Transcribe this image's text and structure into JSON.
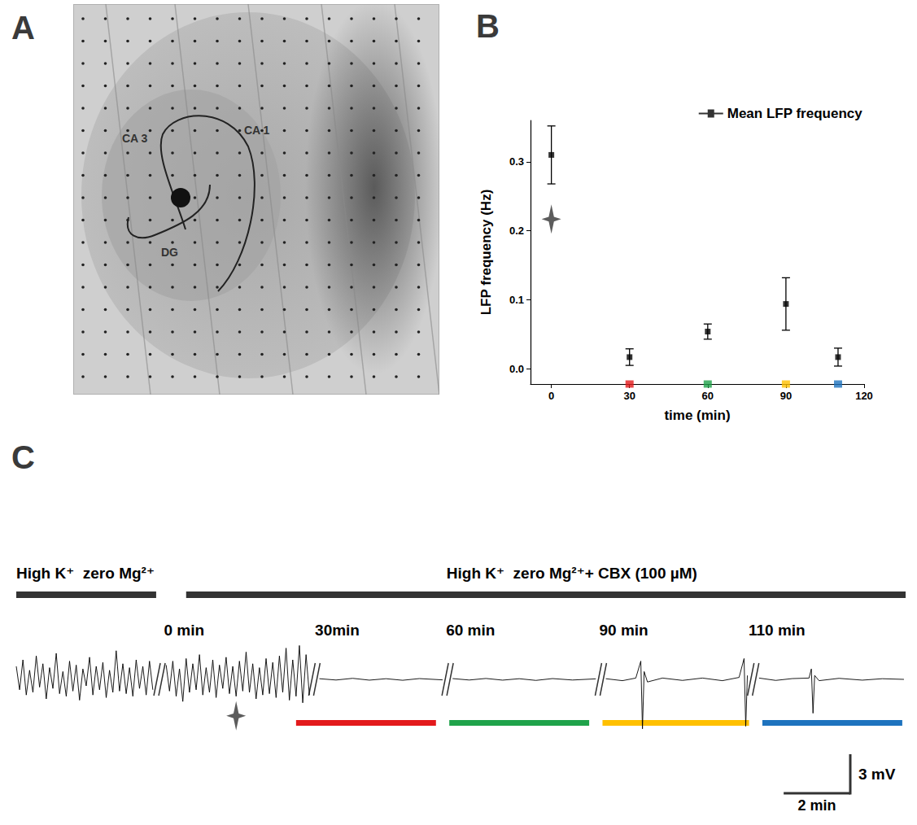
{
  "image": {
    "letter": "A",
    "labels": [
      "CA 3",
      "CA 1",
      "DG"
    ]
  },
  "chart_data": [
    {
      "letter": "B",
      "type": "scatter",
      "x": [
        0,
        30,
        60,
        90,
        110
      ],
      "series": [
        {
          "name": "Mean LFP frequency",
          "color": "#000000",
          "marker": "square",
          "values": [
            0.31,
            0.017,
            0.054,
            0.094,
            0.017
          ],
          "errors": [
            0.042,
            0.012,
            0.011,
            0.038,
            0.013
          ]
        }
      ],
      "x_axis_label": "time (min)",
      "y_axis_label": "LFP frequency (Hz)",
      "xlim": [
        -8,
        120
      ],
      "xticks": [
        0,
        30,
        60,
        90,
        120
      ],
      "ylim": [
        -0.022,
        0.36
      ],
      "yticks": [
        {
          "value": 0,
          "label": "0.0"
        },
        {
          "value": 0.1,
          "label": "0.1"
        },
        {
          "value": 0.2,
          "label": "0.2"
        },
        {
          "value": 0.3,
          "label": "0.3"
        }
      ],
      "grid": false,
      "legend": "top-right",
      "star": {
        "x": 0,
        "y": 0.217
      },
      "x_markers": {
        "x": [
          30,
          60,
          90,
          110
        ],
        "colors": [
          "#e31a1c",
          "#1fa34a",
          "#ffc000",
          "#1e73be"
        ]
      }
    },
    {
      "letter": "C",
      "type": "line",
      "color": "#000000",
      "tick_labels": false,
      "xlim": [
        0,
        26.7
      ],
      "ylim": [
        -5,
        3
      ],
      "segments": [
        {
          "points": [
            [
              0,
              1.0
            ],
            [
              0.1,
              -0.8
            ],
            [
              0.2,
              1.5
            ],
            [
              0.3,
              -1.2
            ],
            [
              0.4,
              0.7
            ],
            [
              0.5,
              -1.0
            ],
            [
              0.6,
              1.8
            ],
            [
              0.7,
              -0.6
            ],
            [
              0.8,
              1.2
            ],
            [
              0.9,
              -1.5
            ],
            [
              1.0,
              0.9
            ],
            [
              1.1,
              -0.7
            ],
            [
              1.2,
              2.0
            ],
            [
              1.3,
              -1.1
            ],
            [
              1.4,
              0.6
            ],
            [
              1.5,
              -1.3
            ],
            [
              1.6,
              1.4
            ],
            [
              1.7,
              -0.9
            ],
            [
              1.8,
              1.1
            ],
            [
              1.9,
              -1.6
            ],
            [
              2.0,
              0.8
            ],
            [
              2.1,
              -0.5
            ],
            [
              2.2,
              1.7
            ],
            [
              2.3,
              -1.2
            ],
            [
              2.4,
              1.0
            ],
            [
              2.5,
              -0.8
            ],
            [
              2.6,
              1.3
            ],
            [
              2.7,
              -1.4
            ],
            [
              2.8,
              0.7
            ],
            [
              2.9,
              -1.0
            ],
            [
              3.0,
              2.2
            ],
            [
              3.1,
              -0.9
            ],
            [
              3.2,
              1.2
            ],
            [
              3.3,
              -1.1
            ],
            [
              3.4,
              0.9
            ],
            [
              3.5,
              -1.3
            ],
            [
              3.6,
              1.5
            ],
            [
              3.7,
              -0.7
            ],
            [
              3.8,
              1.0
            ],
            [
              3.9,
              -1.2
            ],
            [
              4.0,
              1.4
            ],
            [
              4.1,
              -0.8
            ]
          ]
        },
        {
          "label": "0 min",
          "points": [
            [
              4.5,
              1.1
            ],
            [
              4.6,
              -0.9
            ],
            [
              4.7,
              1.4
            ],
            [
              4.8,
              -1.3
            ],
            [
              4.9,
              0.8
            ],
            [
              5.0,
              -1.7
            ],
            [
              5.1,
              1.6
            ],
            [
              5.2,
              -1.0
            ],
            [
              5.3,
              1.2
            ],
            [
              5.4,
              -0.8
            ],
            [
              5.5,
              1.9
            ],
            [
              5.6,
              -1.2
            ],
            [
              5.7,
              0.9
            ],
            [
              5.8,
              -1.0
            ],
            [
              5.9,
              1.5
            ],
            [
              6.0,
              -1.4
            ],
            [
              6.1,
              1.1
            ],
            [
              6.2,
              -0.7
            ],
            [
              6.3,
              1.7
            ],
            [
              6.4,
              -1.1
            ],
            [
              6.5,
              1.0
            ],
            [
              6.6,
              -1.3
            ],
            [
              6.7,
              1.4
            ],
            [
              6.8,
              -0.9
            ],
            [
              6.9,
              2.1
            ],
            [
              7.0,
              -1.0
            ],
            [
              7.1,
              1.2
            ],
            [
              7.2,
              -1.5
            ],
            [
              7.3,
              0.9
            ],
            [
              7.4,
              -1.2
            ],
            [
              7.5,
              1.6
            ],
            [
              7.6,
              -1.1
            ],
            [
              7.7,
              1.3
            ],
            [
              7.8,
              -1.4
            ],
            [
              7.9,
              1.8
            ],
            [
              8.0,
              -1.0
            ],
            [
              8.1,
              2.4
            ],
            [
              8.2,
              -1.6
            ],
            [
              8.3,
              1.5
            ],
            [
              8.4,
              -1.3
            ],
            [
              8.5,
              2.6
            ],
            [
              8.6,
              -1.8
            ],
            [
              8.7,
              1.9
            ],
            [
              8.8,
              -1.2
            ]
          ]
        },
        {
          "label": "30min",
          "points": [
            [
              9.1,
              0.05
            ],
            [
              9.6,
              -0.05
            ],
            [
              10.1,
              0.08
            ],
            [
              10.6,
              -0.06
            ],
            [
              11.1,
              0.05
            ],
            [
              11.6,
              -0.07
            ],
            [
              12.1,
              0.06
            ],
            [
              12.8,
              -0.04
            ]
          ]
        },
        {
          "label": "60 min",
          "points": [
            [
              13.1,
              0.06
            ],
            [
              13.6,
              -0.05
            ],
            [
              14.1,
              0.07
            ],
            [
              14.6,
              -0.06
            ],
            [
              15.1,
              0.05
            ],
            [
              15.6,
              -0.08
            ],
            [
              16.1,
              0.06
            ],
            [
              16.7,
              -0.05
            ],
            [
              17.4,
              0.04
            ]
          ]
        },
        {
          "label": "90 min",
          "points": [
            [
              17.7,
              0.05
            ],
            [
              18.2,
              -0.1
            ],
            [
              18.6,
              0.1
            ],
            [
              18.75,
              1.4
            ],
            [
              18.8,
              -3.8
            ],
            [
              18.85,
              0.6
            ],
            [
              18.95,
              -0.2
            ],
            [
              19.4,
              0.1
            ],
            [
              20.0,
              -0.08
            ],
            [
              20.6,
              0.1
            ],
            [
              21.2,
              -0.1
            ],
            [
              21.7,
              0.15
            ],
            [
              21.85,
              1.6
            ],
            [
              21.9,
              -3.6
            ],
            [
              21.95,
              0.3
            ]
          ]
        },
        {
          "label": "110 min",
          "points": [
            [
              22.3,
              0.1
            ],
            [
              22.8,
              -0.08
            ],
            [
              23.3,
              0.06
            ],
            [
              23.8,
              0.1
            ],
            [
              23.87,
              0.8
            ],
            [
              23.92,
              -2.6
            ],
            [
              23.97,
              0.3
            ],
            [
              24.1,
              -0.1
            ],
            [
              24.7,
              0.08
            ],
            [
              25.4,
              -0.06
            ],
            [
              26.0,
              0.05
            ],
            [
              26.65,
              0
            ]
          ]
        }
      ],
      "conditions": [
        {
          "label": "High K⁺  zero Mg²⁺",
          "t": [
            0,
            4.2
          ]
        },
        {
          "label": "High K⁺  zero Mg²⁺+ CBX (100 µM)",
          "t": [
            5.1,
            26.7
          ]
        }
      ],
      "periods": [
        {
          "color": "#e31a1c",
          "t": [
            8.4,
            12.6
          ]
        },
        {
          "color": "#1fa34a",
          "t": [
            13.0,
            17.2
          ]
        },
        {
          "color": "#ffc000",
          "t": [
            17.6,
            22.0
          ]
        },
        {
          "color": "#1e73be",
          "t": [
            22.4,
            26.6
          ]
        }
      ],
      "star": {
        "t": 6.6,
        "mV": -2.8
      },
      "scale_bar": {
        "x": 2,
        "x_label": "2 min",
        "y": 3,
        "y_label": "3 mV"
      }
    }
  ]
}
